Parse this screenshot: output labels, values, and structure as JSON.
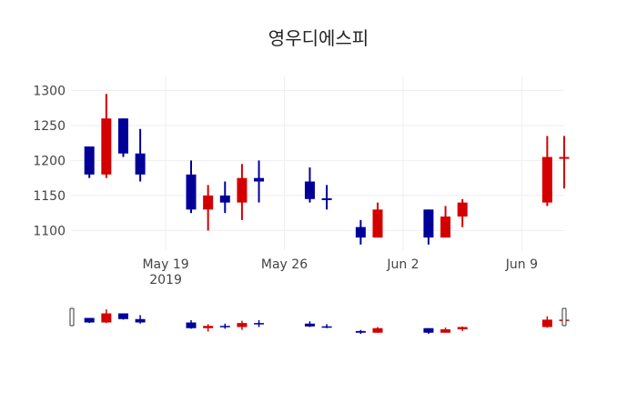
{
  "chart_data": {
    "type": "candlestick",
    "title": "영우디에스피",
    "xlabel": "",
    "ylabel": "",
    "x_range": [
      "2019-05-13T10:00",
      "2019-06-11T12:00"
    ],
    "ylim": [
      1072,
      1320
    ],
    "grid": true,
    "increasing_color": "#d40000",
    "decreasing_color": "#000099",
    "y_ticks": [
      1100,
      1150,
      1200,
      1250,
      1300
    ],
    "x_ticks": [
      {
        "date": "2019-05-19",
        "label": "May 19",
        "sub": "2019"
      },
      {
        "date": "2019-05-26",
        "label": "May 26",
        "sub": ""
      },
      {
        "date": "2019-06-02",
        "label": "Jun 2",
        "sub": ""
      },
      {
        "date": "2019-06-09",
        "label": "Jun 9",
        "sub": ""
      }
    ],
    "candles": [
      {
        "date": "2019-05-14",
        "open": 1220,
        "high": 1220,
        "low": 1175,
        "close": 1180
      },
      {
        "date": "2019-05-15",
        "open": 1180,
        "high": 1295,
        "low": 1175,
        "close": 1260
      },
      {
        "date": "2019-05-16",
        "open": 1260,
        "high": 1260,
        "low": 1205,
        "close": 1210
      },
      {
        "date": "2019-05-17",
        "open": 1210,
        "high": 1245,
        "low": 1170,
        "close": 1180
      },
      {
        "date": "2019-05-20",
        "open": 1180,
        "high": 1200,
        "low": 1125,
        "close": 1130
      },
      {
        "date": "2019-05-21",
        "open": 1130,
        "high": 1165,
        "low": 1100,
        "close": 1150
      },
      {
        "date": "2019-05-22",
        "open": 1150,
        "high": 1170,
        "low": 1125,
        "close": 1140
      },
      {
        "date": "2019-05-23",
        "open": 1140,
        "high": 1195,
        "low": 1115,
        "close": 1175
      },
      {
        "date": "2019-05-24",
        "open": 1175,
        "high": 1200,
        "low": 1140,
        "close": 1170
      },
      {
        "date": "2019-05-27",
        "open": 1170,
        "high": 1190,
        "low": 1140,
        "close": 1145
      },
      {
        "date": "2019-05-28",
        "open": 1146,
        "high": 1165,
        "low": 1130,
        "close": 1145
      },
      {
        "date": "2019-05-30",
        "open": 1105,
        "high": 1115,
        "low": 1080,
        "close": 1090
      },
      {
        "date": "2019-05-31",
        "open": 1090,
        "high": 1140,
        "low": 1090,
        "close": 1130
      },
      {
        "date": "2019-06-03",
        "open": 1130,
        "high": 1130,
        "low": 1080,
        "close": 1090
      },
      {
        "date": "2019-06-04",
        "open": 1090,
        "high": 1135,
        "low": 1090,
        "close": 1120
      },
      {
        "date": "2019-06-05",
        "open": 1120,
        "high": 1145,
        "low": 1105,
        "close": 1140
      },
      {
        "date": "2019-06-10",
        "open": 1140,
        "high": 1235,
        "low": 1135,
        "close": 1205
      },
      {
        "date": "2019-06-11",
        "open": 1205,
        "high": 1235,
        "low": 1160,
        "close": 1205
      }
    ]
  }
}
